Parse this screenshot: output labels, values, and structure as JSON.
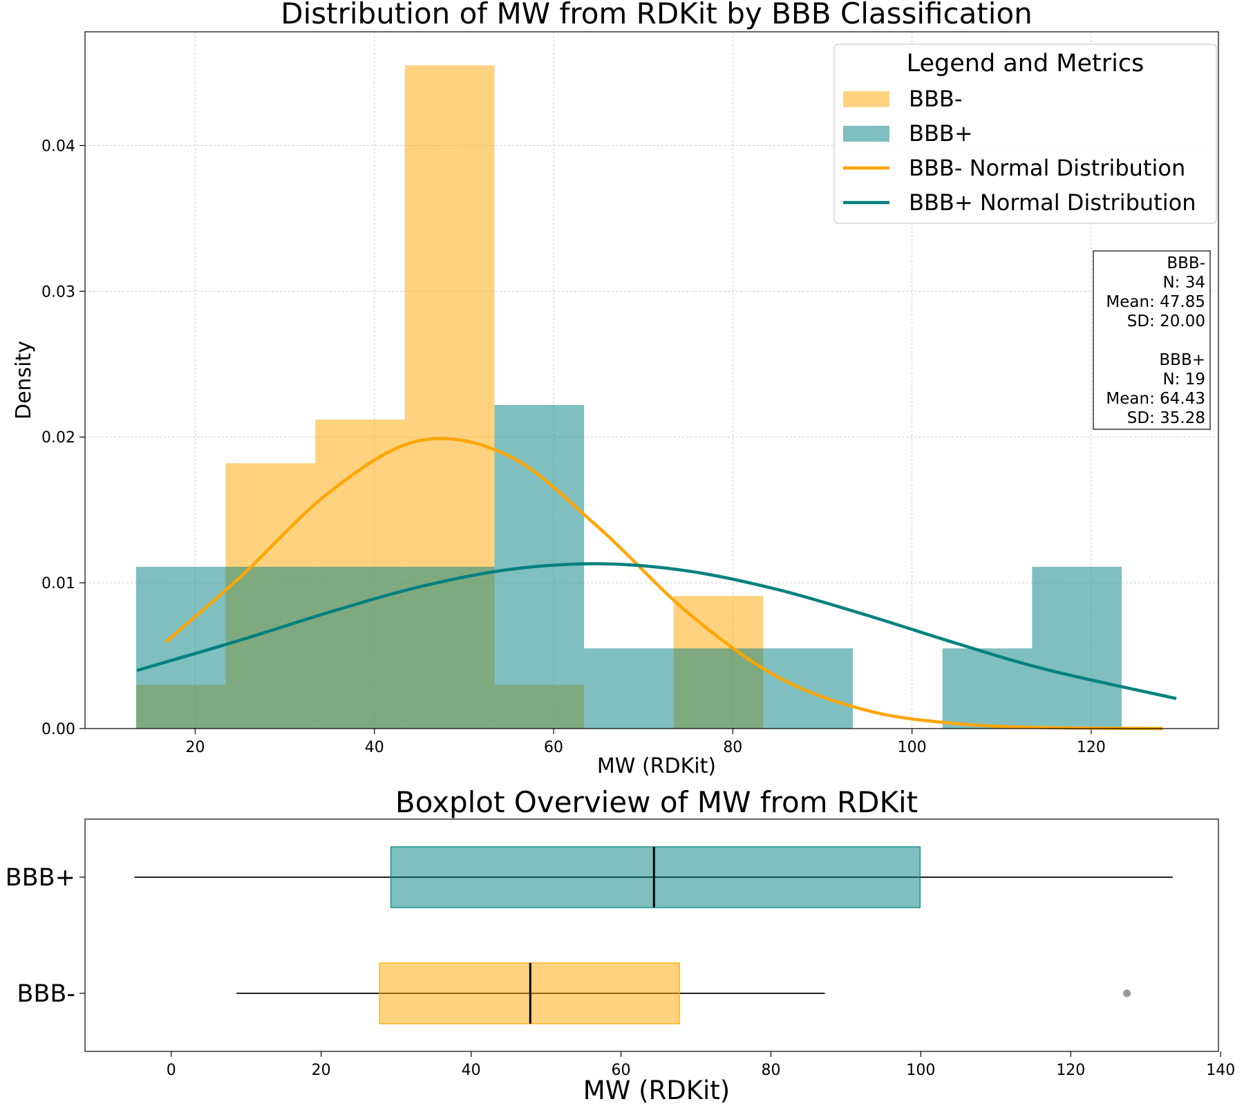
{
  "chart_data": [
    {
      "type": "histogram",
      "title": "Distribution of MW from RDKit by BBB Classification",
      "xlabel": "MW (RDKit)",
      "ylabel": "Density",
      "bins": [
        13.4,
        23.4,
        33.4,
        43.4,
        53.4,
        63.4,
        73.4,
        83.4,
        93.4,
        103.4,
        113.4,
        123.4
      ],
      "series": [
        {
          "name": "BBB-",
          "color": "#ffa500",
          "values": [
            0.003,
            0.0182,
            0.0212,
            0.0455,
            0.003,
            0,
            0.0091,
            0,
            0,
            0,
            0
          ]
        },
        {
          "name": "BBB+",
          "color": "#008080",
          "values": [
            0.0111,
            0.0111,
            0.0111,
            0.0111,
            0.0222,
            0.0055,
            0.0055,
            0.0055,
            0,
            0.0055,
            0.0111
          ]
        }
      ],
      "lines": [
        {
          "name": "BBB- Normal Distribution",
          "color": "#ffa500",
          "x": [
            16.7,
            25,
            35,
            45,
            55,
            65,
            75,
            85,
            95,
            105,
            115,
            128
          ],
          "values": [
            0.00593,
            0.01038,
            0.01623,
            0.01975,
            0.01871,
            0.01381,
            0.00794,
            0.00355,
            0.00124,
            0.000336,
            7.12e-05,
            6.5e-06
          ]
        },
        {
          "name": "BBB+ Normal Distribution",
          "color": "#008080",
          "x": [
            13.5,
            25,
            35,
            45,
            55,
            65,
            75,
            85,
            95,
            105,
            115,
            129.5
          ],
          "values": [
            0.00399,
            0.00606,
            0.00799,
            0.00972,
            0.01091,
            0.01131,
            0.01081,
            0.00954,
            0.00777,
            0.00584,
            0.00405,
            0.00206
          ]
        }
      ],
      "legend_title": "Legend and Metrics",
      "legend": "upper right",
      "annotation": [
        "BBB-",
        "N: 34",
        "Mean: 47.85",
        "SD: 20.00",
        "BBB+",
        "N: 19",
        "Mean: 64.43",
        "SD: 35.28"
      ],
      "xlim": [
        7.7,
        134.2
      ],
      "ylim": [
        0,
        0.0478
      ],
      "xticks": [
        20,
        40,
        60,
        80,
        100,
        120
      ],
      "yticks": [
        {
          "value": 0,
          "label": "0.00"
        },
        {
          "value": 0.01,
          "label": "0.01"
        },
        {
          "value": 0.02,
          "label": "0.02"
        },
        {
          "value": 0.03,
          "label": "0.03"
        },
        {
          "value": 0.04,
          "label": "0.04"
        }
      ],
      "grid": true
    },
    {
      "type": "box",
      "title": "Boxplot Overview of MW from RDKit",
      "xlabel": "MW (RDKit)",
      "categories": [
        "BBB+",
        "BBB-"
      ],
      "series": [
        {
          "name": "BBB+",
          "color": "#008080",
          "whislo": -4.9,
          "q1": 29.3,
          "median": 64.4,
          "q3": 99.9,
          "whishi": 133.6,
          "fliers": []
        },
        {
          "name": "BBB-",
          "color": "#ffa500",
          "whislo": 8.7,
          "q1": 27.8,
          "median": 47.9,
          "q3": 67.8,
          "whishi": 87.2,
          "fliers": [
            127.5
          ]
        }
      ],
      "xlim": [
        -11.5,
        139.7
      ],
      "xticks": [
        0,
        20,
        40,
        60,
        80,
        100,
        120,
        140
      ]
    }
  ]
}
